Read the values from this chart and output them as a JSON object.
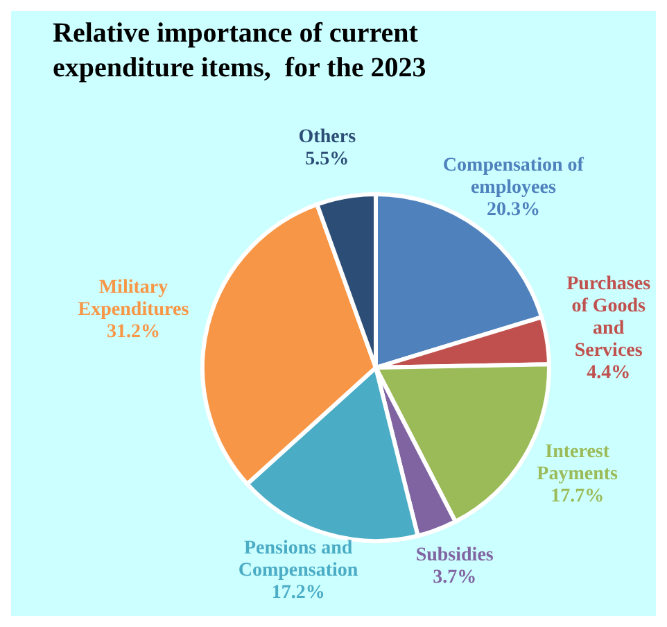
{
  "chart_data": {
    "type": "pie",
    "title": "Relative importance of current expenditure items,  for the 2023",
    "categories": [
      "Compensation of employees",
      "Purchases of Goods and Services",
      "Interest Payments",
      "Subsidies",
      "Pensions and Compensation",
      "Military Expenditures",
      "Others"
    ],
    "values": [
      20.3,
      4.4,
      17.7,
      3.7,
      17.2,
      31.2,
      5.5
    ],
    "value_labels": [
      "20.3%",
      "4.4%",
      "17.7%",
      "3.7%",
      "17.2%",
      "31.2%",
      "5.5%"
    ],
    "colors": [
      "#4f81bd",
      "#c0504d",
      "#9bbb59",
      "#8064a2",
      "#4bacc6",
      "#f79646",
      "#2c4d75"
    ],
    "legend": false
  }
}
